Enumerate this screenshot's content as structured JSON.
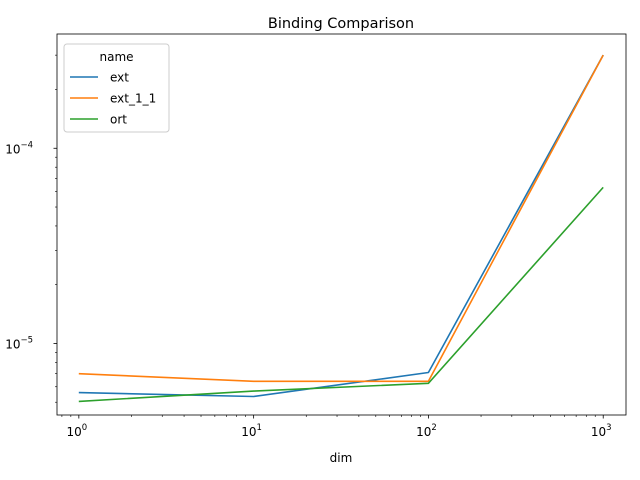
{
  "chart_data": {
    "type": "line",
    "title": "Binding Comparison",
    "xlabel": "dim",
    "ylabel": "",
    "xscale": "log",
    "yscale": "log",
    "xlim": [
      0.75,
      1350
    ],
    "ylim": [
      4.3e-06,
      0.000385
    ],
    "x": [
      1,
      10,
      100,
      1000
    ],
    "series": [
      {
        "name": "ext",
        "color": "#1f77b4",
        "values": [
          5.6e-06,
          5.35e-06,
          7.1e-06,
          0.0003
        ]
      },
      {
        "name": "ext_1_1",
        "color": "#ff7f0e",
        "values": [
          7e-06,
          6.4e-06,
          6.4e-06,
          0.0003
        ]
      },
      {
        "name": "ort",
        "color": "#2ca02c",
        "values": [
          5.05e-06,
          5.7e-06,
          6.25e-06,
          6.3e-05
        ]
      }
    ],
    "x_tick_labels": [
      {
        "value": 1,
        "label": "10",
        "exp": "0"
      },
      {
        "value": 10,
        "label": "10",
        "exp": "1"
      },
      {
        "value": 100,
        "label": "10",
        "exp": "2"
      },
      {
        "value": 1000,
        "label": "10",
        "exp": "3"
      }
    ],
    "y_tick_labels": [
      {
        "value": 1e-05,
        "label": "10",
        "exp": "−5"
      },
      {
        "value": 0.0001,
        "label": "10",
        "exp": "−4"
      }
    ],
    "legend": {
      "title": "name",
      "placement": "top-left"
    },
    "grid": false
  }
}
